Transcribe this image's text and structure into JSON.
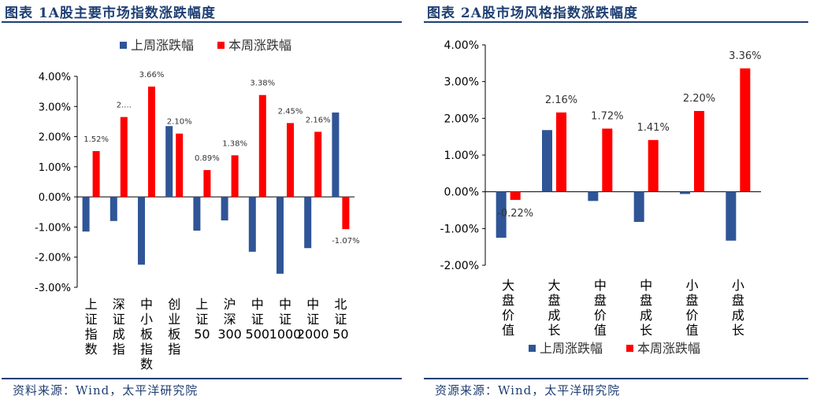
{
  "charts": [
    {
      "title": "图表 1A股主要市场指数涨跌幅度",
      "source": "资料来源：Wind，太平洋研究院",
      "chart_data": {
        "type": "bar",
        "categories": [
          "上证指数",
          "深证成指",
          "中小板指数",
          "创业板指",
          "上证50",
          "沪深300",
          "中证500",
          "中证1000",
          "中证2000",
          "北证50"
        ],
        "series": [
          {
            "name": "上周涨跌幅",
            "color": "#2f5597",
            "values": [
              -1.15,
              -0.8,
              -2.25,
              2.35,
              -1.12,
              -0.78,
              -1.82,
              -2.55,
              -1.7,
              2.8
            ],
            "labels": []
          },
          {
            "name": "本周涨跌幅",
            "color": "#ff0000",
            "values": [
              1.52,
              2.65,
              3.66,
              2.1,
              0.89,
              1.38,
              3.38,
              2.45,
              2.16,
              -1.07
            ],
            "labels": [
              "1.52%",
              "2....",
              "3.66%",
              "2.10%",
              "0.89%",
              "1.38%",
              "3.38%",
              "2.45%",
              "2.16%",
              "-1.07%"
            ]
          }
        ],
        "ylim": [
          -3,
          4
        ],
        "yticks": [
          "4.00%",
          "3.00%",
          "2.00%",
          "1.00%",
          "0.00%",
          "-1.00%",
          "-2.00%",
          "-3.00%"
        ],
        "legend": "top"
      }
    },
    {
      "title": "图表 2A股市场风格指数涨跌幅度",
      "source": "资源来源：Wind，太平洋研究院",
      "chart_data": {
        "type": "bar",
        "categories": [
          "大盘价值",
          "大盘成长",
          "中盘价值",
          "中盘成长",
          "小盘价值",
          "小盘成长"
        ],
        "series": [
          {
            "name": "上周涨跌幅",
            "color": "#2f5597",
            "values": [
              -1.25,
              1.68,
              -0.25,
              -0.82,
              -0.06,
              -1.33
            ],
            "labels": []
          },
          {
            "name": "本周涨跌幅",
            "color": "#ff0000",
            "values": [
              -0.22,
              2.16,
              1.72,
              1.41,
              2.2,
              3.36
            ],
            "labels": [
              "-0.22%",
              "2.16%",
              "1.72%",
              "1.41%",
              "2.20%",
              "3.36%"
            ]
          }
        ],
        "ylim": [
          -2,
          4
        ],
        "yticks": [
          "4.00%",
          "3.00%",
          "2.00%",
          "1.00%",
          "0.00%",
          "-1.00%",
          "-2.00%"
        ],
        "legend": "bottom"
      }
    }
  ]
}
